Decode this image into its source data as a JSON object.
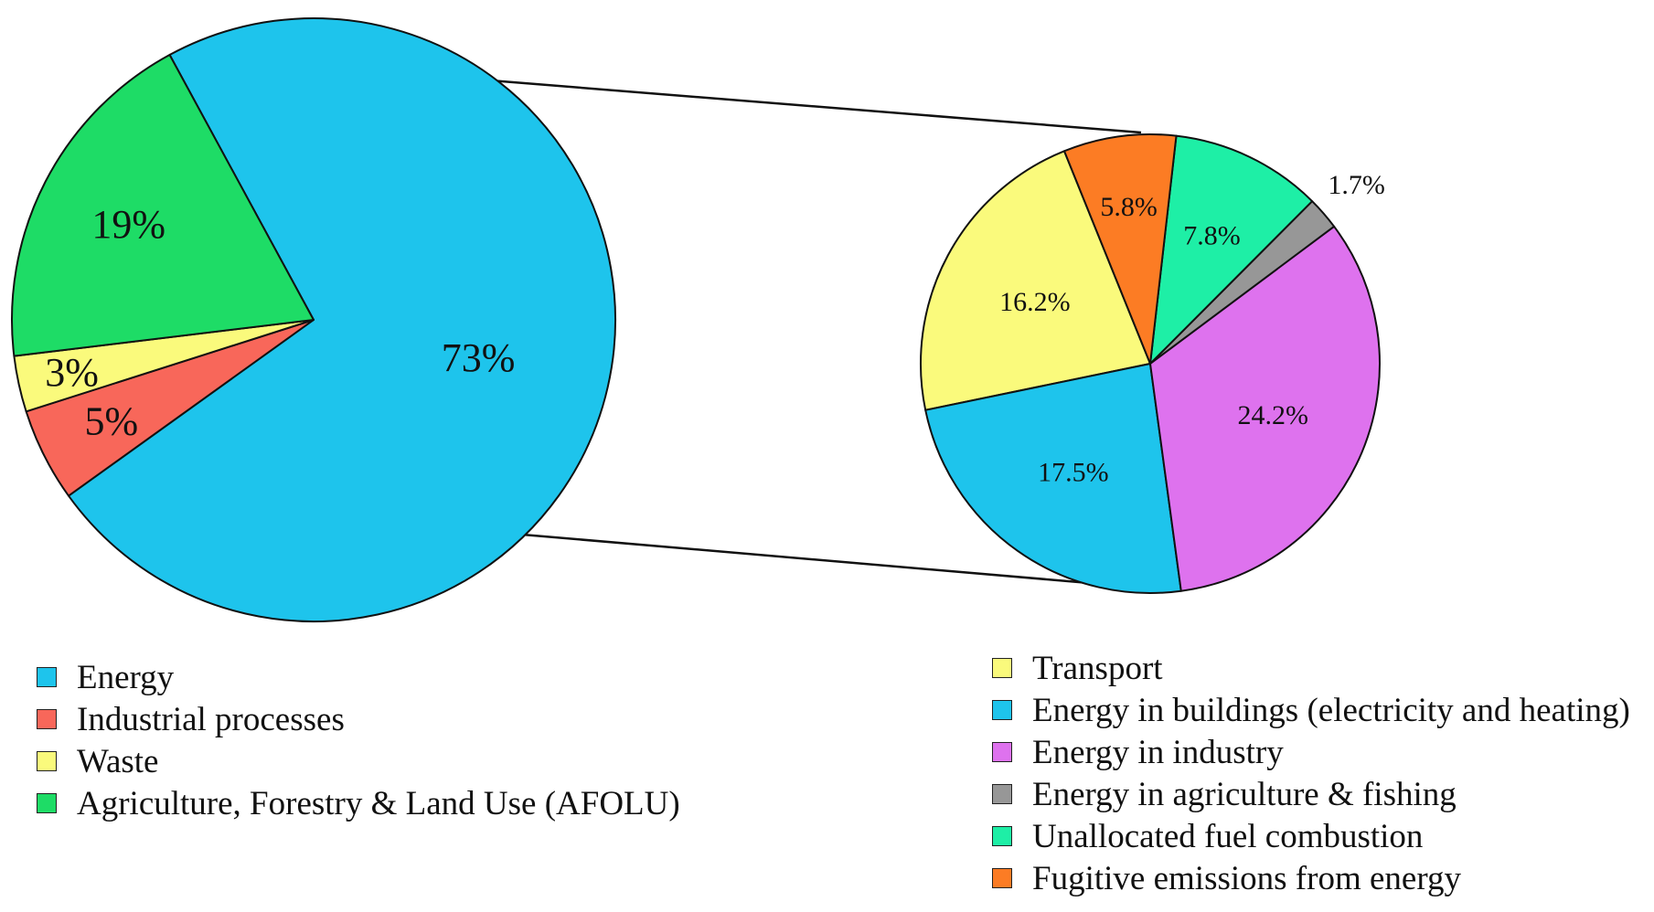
{
  "chart_data": [
    {
      "type": "pie",
      "title": "",
      "slices": [
        {
          "label": "Energy",
          "value": 73,
          "display": "73%",
          "color": "#1EC4EC"
        },
        {
          "label": "Industrial processes",
          "value": 5,
          "display": "5%",
          "color": "#F8675A"
        },
        {
          "label": "Waste",
          "value": 3,
          "display": "3%",
          "color": "#FAFA7C"
        },
        {
          "label": "Agriculture, Forestry & Land Use (AFOLU)",
          "value": 19,
          "display": "19%",
          "color": "#1EDC66"
        }
      ]
    },
    {
      "type": "pie",
      "title": "",
      "parent_slice": "Energy",
      "slices": [
        {
          "label": "Transport",
          "value": 16.2,
          "display": "16.2%",
          "color": "#FAFA7C"
        },
        {
          "label": "Energy in buildings (electricity and heating)",
          "value": 17.5,
          "display": "17.5%",
          "color": "#1EC4EC"
        },
        {
          "label": "Energy in industry",
          "value": 24.2,
          "display": "24.2%",
          "color": "#DE72EE"
        },
        {
          "label": "Energy in agriculture & fishing",
          "value": 1.7,
          "display": "1.7%",
          "color": "#979797"
        },
        {
          "label": "Unallocated fuel combustion",
          "value": 7.8,
          "display": "7.8%",
          "color": "#1EEFA6"
        },
        {
          "label": "Fugitive emissions from energy",
          "value": 5.8,
          "display": "5.8%",
          "color": "#FC7C24"
        }
      ]
    }
  ]
}
